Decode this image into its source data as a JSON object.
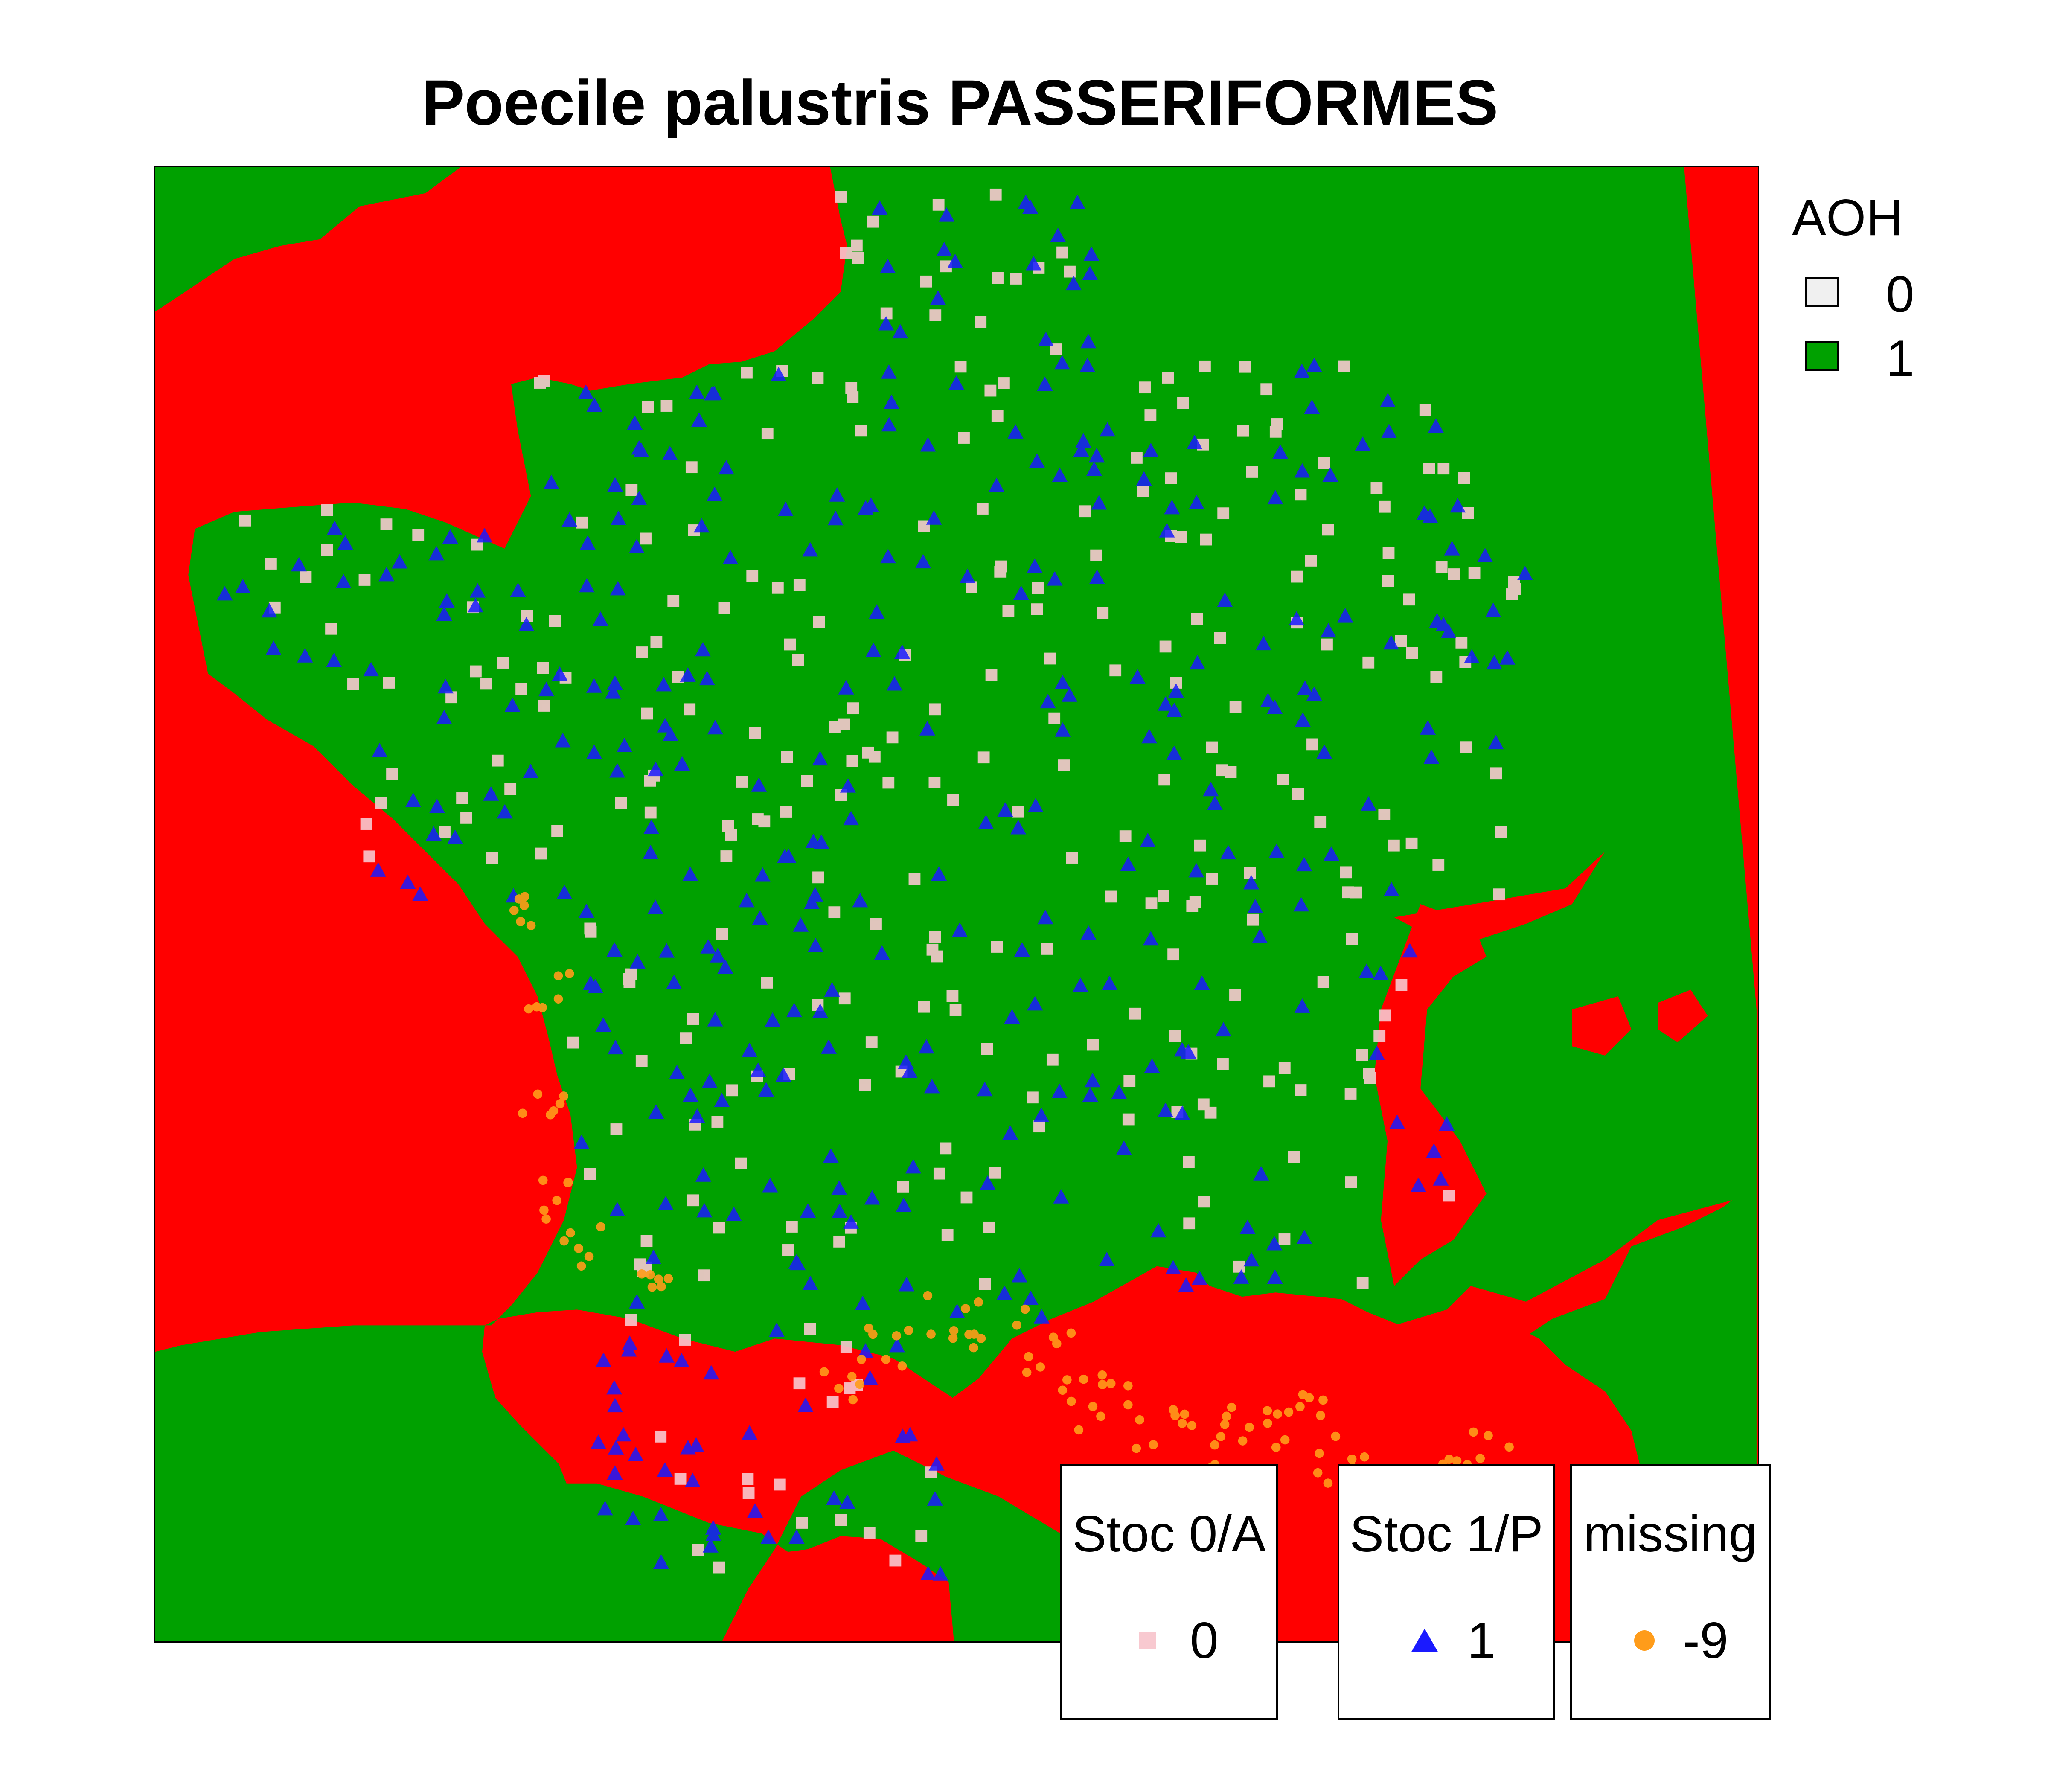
{
  "title": "Poecile palustris PASSERIFORMES",
  "colors": {
    "unsuitable_red": "#ff0000",
    "suitable_green": "#00a100",
    "stoc0_square": "#f8c9d0",
    "stoc1_triangle": "#1a1aff",
    "missing_circle": "#ff9c1a",
    "aoh0_key": "#f0f0f0",
    "aoh1_key": "#00a100"
  },
  "aoh_legend": {
    "title": "AOH",
    "items": [
      {
        "label": "0",
        "color": "#f0f0f0"
      },
      {
        "label": "1",
        "color": "#00a100"
      }
    ]
  },
  "point_legends": [
    {
      "title": "Stoc 0/A",
      "value": "0",
      "symbol": "square-icon",
      "color": "#f8c9d0"
    },
    {
      "title": "Stoc 1/P",
      "value": "1",
      "symbol": "triangle-icon",
      "color": "#1a1aff"
    },
    {
      "title": "missing",
      "value": "-9",
      "symbol": "circle-icon",
      "color": "#ff9c1a"
    }
  ]
}
